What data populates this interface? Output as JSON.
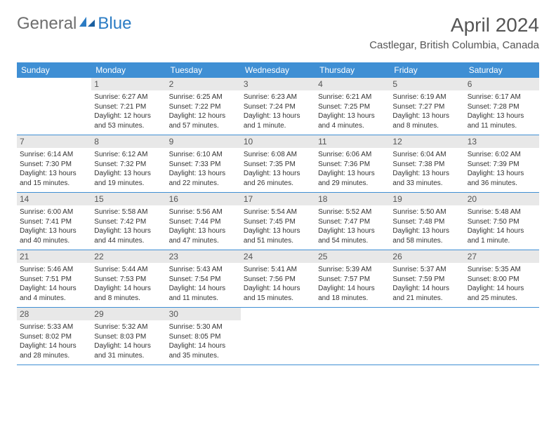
{
  "logo": {
    "general": "General",
    "blue": "Blue"
  },
  "title": "April 2024",
  "location": "Castlegar, British Columbia, Canada",
  "colors": {
    "header_bg": "#3f8fd4",
    "row_stripe": "#e8e8e8",
    "border": "#3f8fd4",
    "text": "#333333",
    "title": "#555555"
  },
  "dayNames": [
    "Sunday",
    "Monday",
    "Tuesday",
    "Wednesday",
    "Thursday",
    "Friday",
    "Saturday"
  ],
  "weeks": [
    [
      {
        "num": "",
        "sunrise": "",
        "sunset": "",
        "daylight": ""
      },
      {
        "num": "1",
        "sunrise": "Sunrise: 6:27 AM",
        "sunset": "Sunset: 7:21 PM",
        "daylight": "Daylight: 12 hours and 53 minutes."
      },
      {
        "num": "2",
        "sunrise": "Sunrise: 6:25 AM",
        "sunset": "Sunset: 7:22 PM",
        "daylight": "Daylight: 12 hours and 57 minutes."
      },
      {
        "num": "3",
        "sunrise": "Sunrise: 6:23 AM",
        "sunset": "Sunset: 7:24 PM",
        "daylight": "Daylight: 13 hours and 1 minute."
      },
      {
        "num": "4",
        "sunrise": "Sunrise: 6:21 AM",
        "sunset": "Sunset: 7:25 PM",
        "daylight": "Daylight: 13 hours and 4 minutes."
      },
      {
        "num": "5",
        "sunrise": "Sunrise: 6:19 AM",
        "sunset": "Sunset: 7:27 PM",
        "daylight": "Daylight: 13 hours and 8 minutes."
      },
      {
        "num": "6",
        "sunrise": "Sunrise: 6:17 AM",
        "sunset": "Sunset: 7:28 PM",
        "daylight": "Daylight: 13 hours and 11 minutes."
      }
    ],
    [
      {
        "num": "7",
        "sunrise": "Sunrise: 6:14 AM",
        "sunset": "Sunset: 7:30 PM",
        "daylight": "Daylight: 13 hours and 15 minutes."
      },
      {
        "num": "8",
        "sunrise": "Sunrise: 6:12 AM",
        "sunset": "Sunset: 7:32 PM",
        "daylight": "Daylight: 13 hours and 19 minutes."
      },
      {
        "num": "9",
        "sunrise": "Sunrise: 6:10 AM",
        "sunset": "Sunset: 7:33 PM",
        "daylight": "Daylight: 13 hours and 22 minutes."
      },
      {
        "num": "10",
        "sunrise": "Sunrise: 6:08 AM",
        "sunset": "Sunset: 7:35 PM",
        "daylight": "Daylight: 13 hours and 26 minutes."
      },
      {
        "num": "11",
        "sunrise": "Sunrise: 6:06 AM",
        "sunset": "Sunset: 7:36 PM",
        "daylight": "Daylight: 13 hours and 29 minutes."
      },
      {
        "num": "12",
        "sunrise": "Sunrise: 6:04 AM",
        "sunset": "Sunset: 7:38 PM",
        "daylight": "Daylight: 13 hours and 33 minutes."
      },
      {
        "num": "13",
        "sunrise": "Sunrise: 6:02 AM",
        "sunset": "Sunset: 7:39 PM",
        "daylight": "Daylight: 13 hours and 36 minutes."
      }
    ],
    [
      {
        "num": "14",
        "sunrise": "Sunrise: 6:00 AM",
        "sunset": "Sunset: 7:41 PM",
        "daylight": "Daylight: 13 hours and 40 minutes."
      },
      {
        "num": "15",
        "sunrise": "Sunrise: 5:58 AM",
        "sunset": "Sunset: 7:42 PM",
        "daylight": "Daylight: 13 hours and 44 minutes."
      },
      {
        "num": "16",
        "sunrise": "Sunrise: 5:56 AM",
        "sunset": "Sunset: 7:44 PM",
        "daylight": "Daylight: 13 hours and 47 minutes."
      },
      {
        "num": "17",
        "sunrise": "Sunrise: 5:54 AM",
        "sunset": "Sunset: 7:45 PM",
        "daylight": "Daylight: 13 hours and 51 minutes."
      },
      {
        "num": "18",
        "sunrise": "Sunrise: 5:52 AM",
        "sunset": "Sunset: 7:47 PM",
        "daylight": "Daylight: 13 hours and 54 minutes."
      },
      {
        "num": "19",
        "sunrise": "Sunrise: 5:50 AM",
        "sunset": "Sunset: 7:48 PM",
        "daylight": "Daylight: 13 hours and 58 minutes."
      },
      {
        "num": "20",
        "sunrise": "Sunrise: 5:48 AM",
        "sunset": "Sunset: 7:50 PM",
        "daylight": "Daylight: 14 hours and 1 minute."
      }
    ],
    [
      {
        "num": "21",
        "sunrise": "Sunrise: 5:46 AM",
        "sunset": "Sunset: 7:51 PM",
        "daylight": "Daylight: 14 hours and 4 minutes."
      },
      {
        "num": "22",
        "sunrise": "Sunrise: 5:44 AM",
        "sunset": "Sunset: 7:53 PM",
        "daylight": "Daylight: 14 hours and 8 minutes."
      },
      {
        "num": "23",
        "sunrise": "Sunrise: 5:43 AM",
        "sunset": "Sunset: 7:54 PM",
        "daylight": "Daylight: 14 hours and 11 minutes."
      },
      {
        "num": "24",
        "sunrise": "Sunrise: 5:41 AM",
        "sunset": "Sunset: 7:56 PM",
        "daylight": "Daylight: 14 hours and 15 minutes."
      },
      {
        "num": "25",
        "sunrise": "Sunrise: 5:39 AM",
        "sunset": "Sunset: 7:57 PM",
        "daylight": "Daylight: 14 hours and 18 minutes."
      },
      {
        "num": "26",
        "sunrise": "Sunrise: 5:37 AM",
        "sunset": "Sunset: 7:59 PM",
        "daylight": "Daylight: 14 hours and 21 minutes."
      },
      {
        "num": "27",
        "sunrise": "Sunrise: 5:35 AM",
        "sunset": "Sunset: 8:00 PM",
        "daylight": "Daylight: 14 hours and 25 minutes."
      }
    ],
    [
      {
        "num": "28",
        "sunrise": "Sunrise: 5:33 AM",
        "sunset": "Sunset: 8:02 PM",
        "daylight": "Daylight: 14 hours and 28 minutes."
      },
      {
        "num": "29",
        "sunrise": "Sunrise: 5:32 AM",
        "sunset": "Sunset: 8:03 PM",
        "daylight": "Daylight: 14 hours and 31 minutes."
      },
      {
        "num": "30",
        "sunrise": "Sunrise: 5:30 AM",
        "sunset": "Sunset: 8:05 PM",
        "daylight": "Daylight: 14 hours and 35 minutes."
      },
      {
        "num": "",
        "sunrise": "",
        "sunset": "",
        "daylight": ""
      },
      {
        "num": "",
        "sunrise": "",
        "sunset": "",
        "daylight": ""
      },
      {
        "num": "",
        "sunrise": "",
        "sunset": "",
        "daylight": ""
      },
      {
        "num": "",
        "sunrise": "",
        "sunset": "",
        "daylight": ""
      }
    ]
  ]
}
